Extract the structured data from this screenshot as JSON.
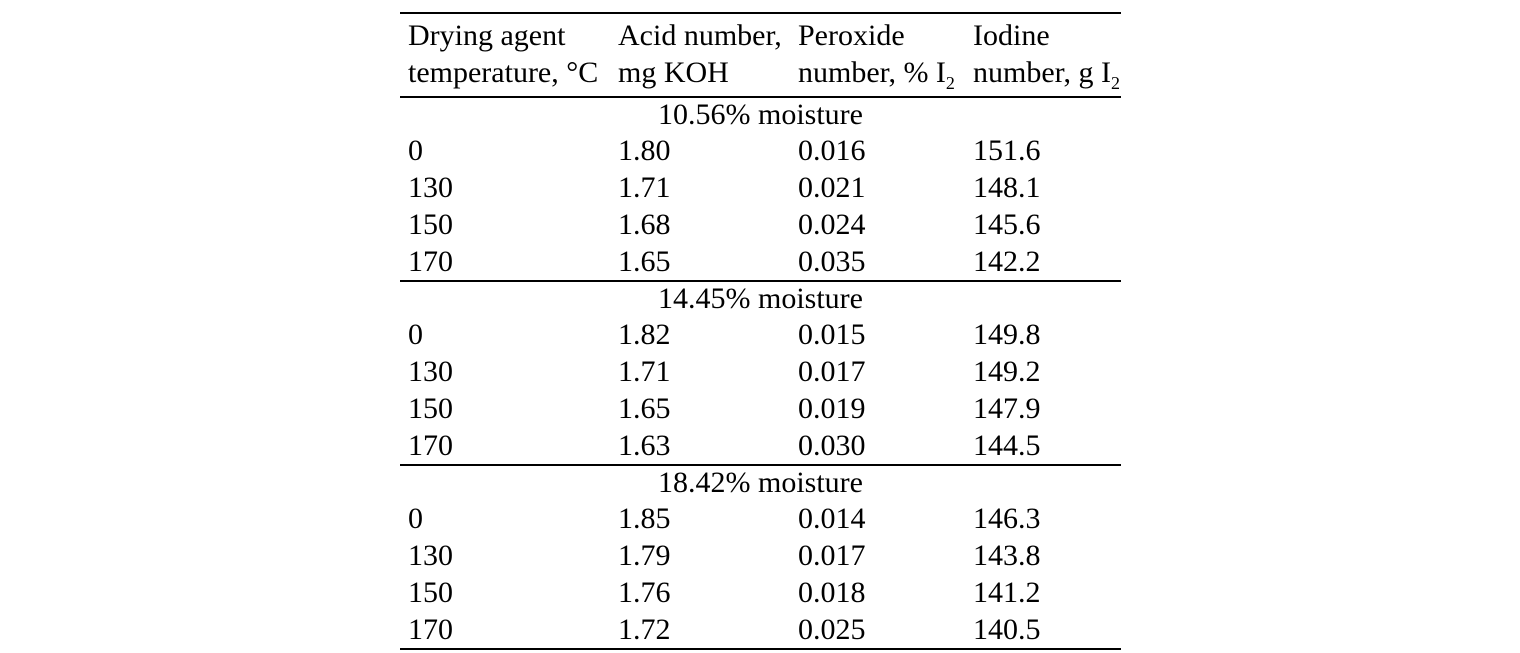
{
  "page": {
    "background_color": "#ffffff",
    "text_color": "#000000"
  },
  "table": {
    "columns": [
      {
        "line1": "Drying agent",
        "line2": "temperature, °C",
        "sub": ""
      },
      {
        "line1": "Acid number,",
        "line2": "mg KOH",
        "sub": ""
      },
      {
        "line1": "Peroxide",
        "line2": "number, % I",
        "sub": "2"
      },
      {
        "line1": "Iodine",
        "line2": "number, g I",
        "sub": "2"
      }
    ],
    "sections": [
      {
        "title": "10.56% moisture",
        "rows": [
          [
            "0",
            "1.80",
            "0.016",
            "151.6"
          ],
          [
            "130",
            "1.71",
            "0.021",
            "148.1"
          ],
          [
            "150",
            "1.68",
            "0.024",
            "145.6"
          ],
          [
            "170",
            "1.65",
            "0.035",
            "142.2"
          ]
        ]
      },
      {
        "title": "14.45% moisture",
        "rows": [
          [
            "0",
            "1.82",
            "0.015",
            "149.8"
          ],
          [
            "130",
            "1.71",
            "0.017",
            "149.2"
          ],
          [
            "150",
            "1.65",
            "0.019",
            "147.9"
          ],
          [
            "170",
            "1.63",
            "0.030",
            "144.5"
          ]
        ]
      },
      {
        "title": "18.42% moisture",
        "rows": [
          [
            "0",
            "1.85",
            "0.014",
            "146.3"
          ],
          [
            "130",
            "1.79",
            "0.017",
            "143.8"
          ],
          [
            "150",
            "1.76",
            "0.018",
            "141.2"
          ],
          [
            "170",
            "1.72",
            "0.025",
            "140.5"
          ]
        ]
      }
    ]
  }
}
